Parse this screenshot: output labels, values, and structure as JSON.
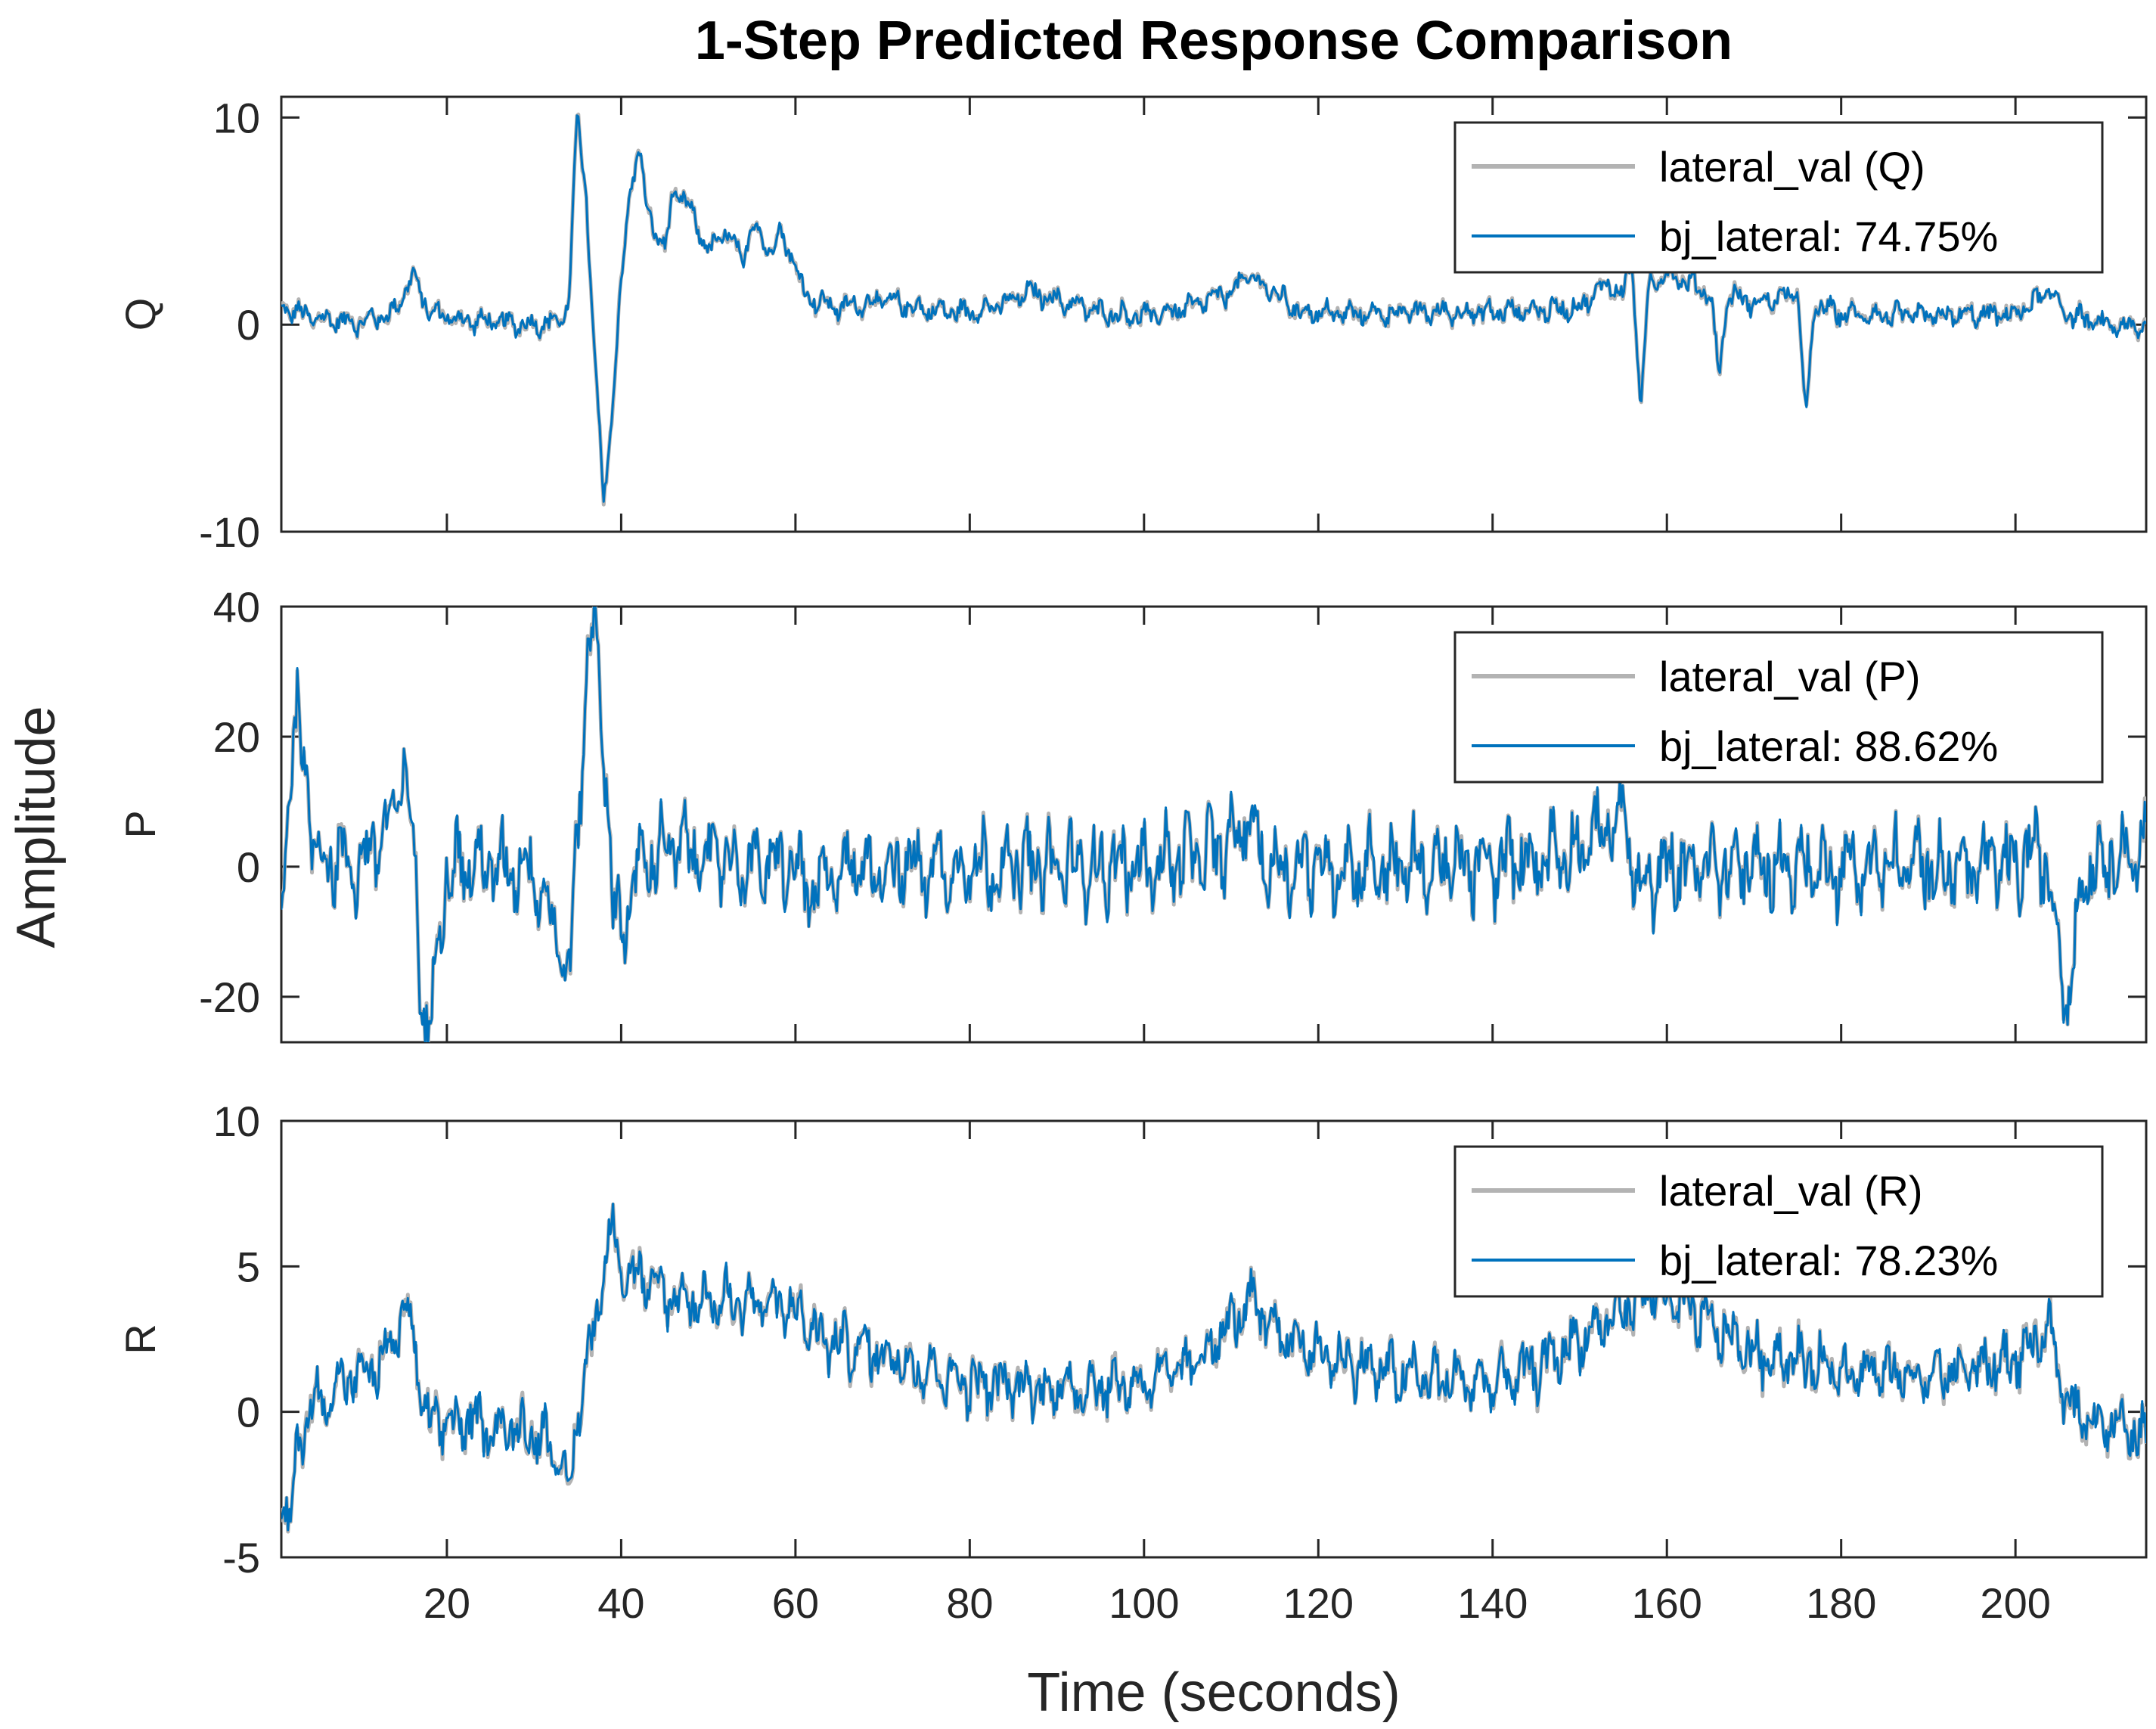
{
  "chart_data": {
    "type": "line",
    "title": "1-Step Predicted Response Comparison",
    "xlabel": "Time (seconds)",
    "ylabel": "Amplitude",
    "xlim": [
      1,
      215
    ],
    "x_ticks": [
      20,
      40,
      60,
      80,
      100,
      120,
      140,
      160,
      180,
      200
    ],
    "colors": {
      "measured": "#b3b3b3",
      "predicted": "#0072bd",
      "axes": "#262626"
    },
    "panels": [
      {
        "ylabel": "Q",
        "ylim": [
          -10,
          11
        ],
        "y_ticks": [
          -10,
          0,
          10
        ],
        "legend_placement": "top-right",
        "series": [
          {
            "name": "lateral_val (Q)",
            "role": "measured"
          },
          {
            "name": "bj_lateral: 74.75%",
            "role": "predicted"
          }
        ],
        "keyframes": [
          [
            1,
            0.8
          ],
          [
            5,
            0.3
          ],
          [
            10,
            0.1
          ],
          [
            14,
            0.6
          ],
          [
            16,
            2.4
          ],
          [
            18,
            0.6
          ],
          [
            22,
            0.2
          ],
          [
            30,
            0
          ],
          [
            33,
            0.2
          ],
          [
            34,
            1
          ],
          [
            35,
            10.5
          ],
          [
            36,
            6
          ],
          [
            37,
            -2
          ],
          [
            38,
            -8.5
          ],
          [
            39,
            -4
          ],
          [
            40,
            2
          ],
          [
            41,
            6.5
          ],
          [
            42,
            8.5
          ],
          [
            43,
            5.5
          ],
          [
            45,
            3.5
          ],
          [
            46,
            6.5
          ],
          [
            48,
            5.5
          ],
          [
            50,
            3.5
          ],
          [
            52,
            4.5
          ],
          [
            54,
            3
          ],
          [
            55,
            5
          ],
          [
            57,
            3.5
          ],
          [
            58,
            4.5
          ],
          [
            60,
            3
          ],
          [
            61,
            1.5
          ],
          [
            62,
            1.2
          ],
          [
            65,
            0.8
          ],
          [
            70,
            1.2
          ],
          [
            75,
            0.7
          ],
          [
            80,
            0.6
          ],
          [
            84,
            1
          ],
          [
            87,
            1.6
          ],
          [
            90,
            1.2
          ],
          [
            95,
            0.6
          ],
          [
            100,
            0.4
          ],
          [
            105,
            0.8
          ],
          [
            110,
            1.6
          ],
          [
            112,
            2.4
          ],
          [
            114,
            1.8
          ],
          [
            118,
            0.6
          ],
          [
            125,
            0.5
          ],
          [
            130,
            0.6
          ],
          [
            140,
            0.6
          ],
          [
            150,
            0.8
          ],
          [
            153,
            2
          ],
          [
            155,
            1.5
          ],
          [
            156,
            3
          ],
          [
            157,
            -4
          ],
          [
            158,
            2
          ],
          [
            160,
            2.5
          ],
          [
            165,
            1.5
          ],
          [
            166,
            -2.5
          ],
          [
            167,
            1.5
          ],
          [
            170,
            1
          ],
          [
            175,
            1.5
          ],
          [
            176,
            -4.5
          ],
          [
            177,
            1
          ],
          [
            180,
            0.5
          ],
          [
            190,
            0.4
          ],
          [
            200,
            0.5
          ],
          [
            204,
            1.6
          ],
          [
            206,
            0.5
          ],
          [
            210,
            0
          ],
          [
            215,
            -0.2
          ]
        ],
        "noise_amplitude": 0.55,
        "measured_offset": 0.15
      },
      {
        "ylabel": "P",
        "ylim": [
          -27,
          40
        ],
        "y_ticks": [
          -20,
          0,
          20,
          40
        ],
        "legend_placement": "top-right",
        "series": [
          {
            "name": "lateral_val (P)",
            "role": "measured"
          },
          {
            "name": "bj_lateral: 88.62%",
            "role": "predicted"
          }
        ],
        "keyframes": [
          [
            1,
            -5
          ],
          [
            2,
            15
          ],
          [
            3,
            23
          ],
          [
            4,
            12
          ],
          [
            5,
            2
          ],
          [
            10,
            0
          ],
          [
            14,
            8
          ],
          [
            15,
            15
          ],
          [
            16,
            6
          ],
          [
            17,
            -18
          ],
          [
            18,
            -27
          ],
          [
            19,
            -10
          ],
          [
            20,
            0
          ],
          [
            25,
            0
          ],
          [
            30,
            0
          ],
          [
            33,
            -12
          ],
          [
            34,
            -18
          ],
          [
            35,
            5
          ],
          [
            36,
            30
          ],
          [
            37,
            38
          ],
          [
            38,
            20
          ],
          [
            39,
            -5
          ],
          [
            40,
            -10
          ],
          [
            42,
            0
          ],
          [
            45,
            3
          ],
          [
            50,
            2
          ],
          [
            55,
            0
          ],
          [
            60,
            0
          ],
          [
            62,
            -5
          ],
          [
            65,
            0
          ],
          [
            70,
            0
          ],
          [
            80,
            0
          ],
          [
            100,
            0
          ],
          [
            110,
            3
          ],
          [
            112,
            8
          ],
          [
            114,
            0
          ],
          [
            120,
            0
          ],
          [
            140,
            0
          ],
          [
            150,
            3
          ],
          [
            155,
            8
          ],
          [
            157,
            -5
          ],
          [
            160,
            0
          ],
          [
            180,
            0
          ],
          [
            200,
            0
          ],
          [
            203,
            3
          ],
          [
            205,
            -12
          ],
          [
            206,
            -20
          ],
          [
            208,
            0
          ],
          [
            212,
            2
          ],
          [
            215,
            3
          ]
        ],
        "noise_amplitude": 6.5,
        "measured_offset": 0.6
      },
      {
        "ylabel": "R",
        "ylim": [
          -5,
          10
        ],
        "y_ticks": [
          -5,
          0,
          5,
          10
        ],
        "legend_placement": "top-right",
        "series": [
          {
            "name": "lateral_val (R)",
            "role": "measured"
          },
          {
            "name": "bj_lateral: 78.23%",
            "role": "predicted"
          }
        ],
        "keyframes": [
          [
            1,
            -3
          ],
          [
            2,
            -4
          ],
          [
            3,
            -1
          ],
          [
            4,
            0
          ],
          [
            8,
            1
          ],
          [
            12,
            1.5
          ],
          [
            14,
            2.5
          ],
          [
            15,
            3.5
          ],
          [
            16,
            3
          ],
          [
            17,
            0.5
          ],
          [
            18,
            -0.5
          ],
          [
            20,
            -0.3
          ],
          [
            25,
            -0.5
          ],
          [
            30,
            -0.7
          ],
          [
            32,
            -1
          ],
          [
            33,
            -2
          ],
          [
            34,
            -3
          ],
          [
            35,
            0
          ],
          [
            37,
            3
          ],
          [
            38,
            5
          ],
          [
            39,
            6.5
          ],
          [
            40,
            5
          ],
          [
            45,
            4
          ],
          [
            50,
            3.8
          ],
          [
            55,
            3.8
          ],
          [
            60,
            3.5
          ],
          [
            63,
            2.5
          ],
          [
            70,
            2
          ],
          [
            80,
            1
          ],
          [
            90,
            0.8
          ],
          [
            100,
            1
          ],
          [
            105,
            1.5
          ],
          [
            110,
            3
          ],
          [
            112,
            3.8
          ],
          [
            114,
            3
          ],
          [
            120,
            2
          ],
          [
            130,
            1.2
          ],
          [
            140,
            1
          ],
          [
            145,
            1.5
          ],
          [
            150,
            2.5
          ],
          [
            155,
            3.5
          ],
          [
            158,
            4.2
          ],
          [
            160,
            3.8
          ],
          [
            165,
            3
          ],
          [
            170,
            2
          ],
          [
            180,
            1.5
          ],
          [
            190,
            1.2
          ],
          [
            200,
            1.8
          ],
          [
            204,
            2.8
          ],
          [
            205,
            1
          ],
          [
            207,
            0
          ],
          [
            210,
            -0.3
          ],
          [
            215,
            -1
          ]
        ],
        "noise_amplitude": 1.0,
        "measured_offset": 0.2
      }
    ]
  }
}
